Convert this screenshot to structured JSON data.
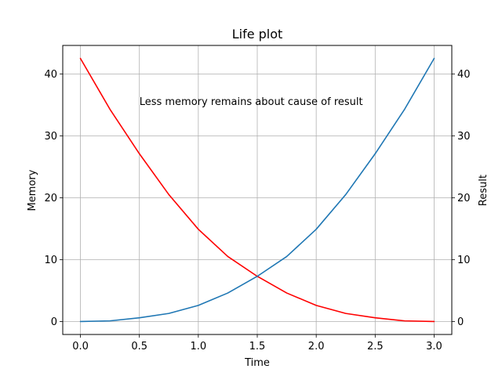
{
  "chart_data": {
    "type": "line",
    "title": "Life plot",
    "xlabel": "Time",
    "ylabel_left": "Memory",
    "ylabel_right": "Result",
    "annotation": {
      "text": "Less memory remains about cause of result",
      "x": 0.5,
      "y": 35
    },
    "xlim": [
      -0.15,
      3.15
    ],
    "ylim": [
      -2.1,
      44.6
    ],
    "x_ticks": [
      0.0,
      0.5,
      1.0,
      1.5,
      2.0,
      2.5,
      3.0
    ],
    "x_tick_labels": [
      "0.0",
      "0.5",
      "1.0",
      "1.5",
      "2.0",
      "2.5",
      "3.0"
    ],
    "y_ticks": [
      0,
      10,
      20,
      30,
      40
    ],
    "y_tick_labels": [
      "0",
      "10",
      "20",
      "30",
      "40"
    ],
    "grid": true,
    "x": [
      0.0,
      0.25,
      0.5,
      0.75,
      1.0,
      1.25,
      1.5,
      1.75,
      2.0,
      2.25,
      2.5,
      2.75,
      3.0
    ],
    "series": [
      {
        "axis": "left",
        "color": "#ff0000",
        "values": [
          42.5,
          34.3,
          27.1,
          20.5,
          14.9,
          10.5,
          7.3,
          4.6,
          2.6,
          1.3,
          0.6,
          0.1,
          0.0
        ]
      },
      {
        "axis": "right",
        "color": "#1f77b4",
        "values": [
          0.0,
          0.1,
          0.6,
          1.3,
          2.6,
          4.6,
          7.3,
          10.5,
          14.9,
          20.5,
          27.1,
          34.3,
          42.5
        ]
      }
    ]
  }
}
